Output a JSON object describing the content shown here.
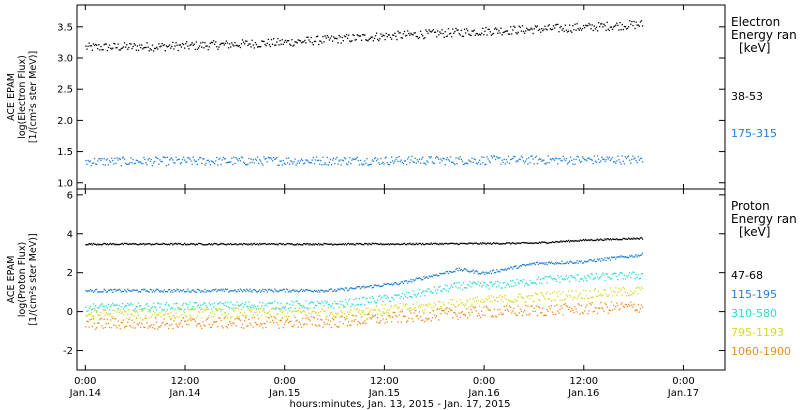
{
  "chart_data": [
    {
      "type": "scatter",
      "panel": "electron",
      "ylabel_lines": [
        "ACE EPAM",
        "log(Electron Flux)",
        "[1/(cm²s ster MeV)]"
      ],
      "ylim": [
        0.9,
        3.85
      ],
      "yticks": [
        1.0,
        1.5,
        2.0,
        2.5,
        3.0,
        3.5
      ],
      "ytick_labels": [
        "1.0",
        "1.5",
        "2.0",
        "2.5",
        "3.0",
        "3.5"
      ],
      "legend_title_lines": [
        "Electron",
        "Energy ran"
      ],
      "legend_unit": "[keV]",
      "series": [
        {
          "name": "38-53",
          "color": "#000000",
          "points": [
            [
              0,
              3.18
            ],
            [
              12,
              3.2
            ],
            [
              24,
              3.26
            ],
            [
              36,
              3.36
            ],
            [
              48,
              3.44
            ],
            [
              60,
              3.5
            ],
            [
              67,
              3.55
            ]
          ],
          "scatter": 0.07
        },
        {
          "name": "175-315",
          "color": "#1f7fd6",
          "points": [
            [
              0,
              1.35
            ],
            [
              24,
              1.36
            ],
            [
              48,
              1.37
            ],
            [
              67,
              1.38
            ]
          ],
          "scatter": 0.07
        }
      ]
    },
    {
      "type": "scatter",
      "panel": "proton",
      "ylabel_lines": [
        "ACE EPAM",
        "log(Proton Flux)",
        "[1/(cm²s ster MeV)]"
      ],
      "ylim": [
        -3.0,
        6.3
      ],
      "yticks": [
        -2,
        0,
        2,
        4,
        6
      ],
      "ytick_labels": [
        "-2",
        "0",
        "2",
        "4",
        "6"
      ],
      "legend_title_lines": [
        "Proton",
        "Energy ran"
      ],
      "legend_unit": "[keV]",
      "series": [
        {
          "name": "47-68",
          "color": "#000000",
          "points": [
            [
              0,
              3.5
            ],
            [
              36,
              3.5
            ],
            [
              45,
              3.52
            ],
            [
              54,
              3.55
            ],
            [
              60,
              3.7
            ],
            [
              67,
              3.8
            ]
          ],
          "scatter": 0.04
        },
        {
          "name": "115-195",
          "color": "#1f7fd6",
          "points": [
            [
              0,
              1.1
            ],
            [
              30,
              1.12
            ],
            [
              38,
              1.5
            ],
            [
              45,
              2.2
            ],
            [
              48,
              2.0
            ],
            [
              54,
              2.5
            ],
            [
              60,
              2.6
            ],
            [
              67,
              2.95
            ]
          ],
          "scatter": 0.08
        },
        {
          "name": "310-580",
          "color": "#2ddbd0",
          "points": [
            [
              0,
              0.25
            ],
            [
              30,
              0.4
            ],
            [
              38,
              0.8
            ],
            [
              45,
              1.35
            ],
            [
              50,
              1.4
            ],
            [
              56,
              1.7
            ],
            [
              67,
              1.9
            ]
          ],
          "scatter": 0.2
        },
        {
          "name": "795-1193",
          "color": "#d6d92a",
          "points": [
            [
              0,
              -0.1
            ],
            [
              30,
              0.0
            ],
            [
              40,
              0.25
            ],
            [
              47,
              0.55
            ],
            [
              55,
              0.8
            ],
            [
              67,
              1.1
            ]
          ],
          "scatter": 0.25
        },
        {
          "name": "1060-1900",
          "color": "#f08a1c",
          "points": [
            [
              0,
              -0.6
            ],
            [
              30,
              -0.5
            ],
            [
              40,
              -0.2
            ],
            [
              47,
              0.0
            ],
            [
              55,
              0.1
            ],
            [
              67,
              0.3
            ]
          ],
          "scatter": 0.3
        }
      ]
    }
  ],
  "x_axis": {
    "range_hours": [
      -1,
      77
    ],
    "ticks": [
      {
        "t": 0,
        "top": "0:00",
        "bottom": "Jan.14"
      },
      {
        "t": 12,
        "top": "12:00",
        "bottom": "Jan.14"
      },
      {
        "t": 24,
        "top": "0:00",
        "bottom": "Jan.15"
      },
      {
        "t": 36,
        "top": "12:00",
        "bottom": "Jan.15"
      },
      {
        "t": 48,
        "top": "0:00",
        "bottom": "Jan.16"
      },
      {
        "t": 60,
        "top": "12:00",
        "bottom": "Jan.16"
      },
      {
        "t": 72,
        "top": "0:00",
        "bottom": "Jan.17"
      }
    ],
    "xlabel": "hours:minutes, Jan. 13, 2015 - Jan. 17, 2015"
  }
}
